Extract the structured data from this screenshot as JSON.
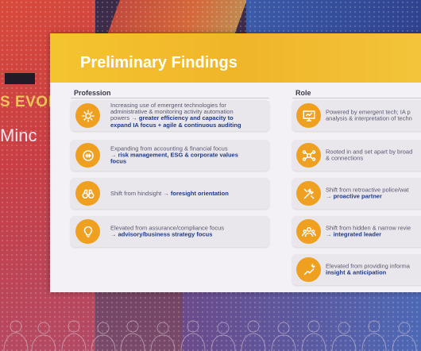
{
  "backdrop": {
    "banner_text_1": "S EVOL",
    "banner_text_2": "Minc"
  },
  "slide": {
    "title": "Preliminary Findings",
    "accent_color": "#f0b52a",
    "icon_color": "#f0a020",
    "highlight_color": "#1f3a8a",
    "profession": {
      "heading": "Profession",
      "items": [
        {
          "icon": "gear-icon",
          "plain": "Increasing use of emergent technologies for\nadministrative & monitoring activity automation\npowers → ",
          "bold": "greater efficiency and capacity to\nexpand IA focus + agile & continuous auditing"
        },
        {
          "icon": "arrows-icon",
          "plain": "Expanding from accounting & financial focus\n→ ",
          "bold": "risk management, ESG & corporate values\nfocus"
        },
        {
          "icon": "binoculars-icon",
          "plain": "Shift from hindsight → ",
          "bold": "foresight orientation"
        },
        {
          "icon": "lightbulb-icon",
          "plain": "Elevated from assurance/compliance focus\n→ ",
          "bold": "advisory/business strategy focus"
        }
      ]
    },
    "role": {
      "heading": "Role",
      "items": [
        {
          "icon": "presentation-icon",
          "plain": "Powered by emergent tech; IA p\nanalysis & interpretation of techn",
          "bold": ""
        },
        {
          "icon": "network-icon",
          "plain": "Rooted in and set apart by broad\n& connections",
          "bold": ""
        },
        {
          "icon": "tools-icon",
          "plain": "Shift from retroactive police/wat\n→ ",
          "bold": "proactive partner"
        },
        {
          "icon": "team-icon",
          "plain": "Shift from hidden & narrow revie\n→ ",
          "bold": "integrated leader"
        },
        {
          "icon": "insight-icon",
          "plain": "Elevated from providing informa\n",
          "bold": "insight & anticipation"
        }
      ]
    }
  }
}
